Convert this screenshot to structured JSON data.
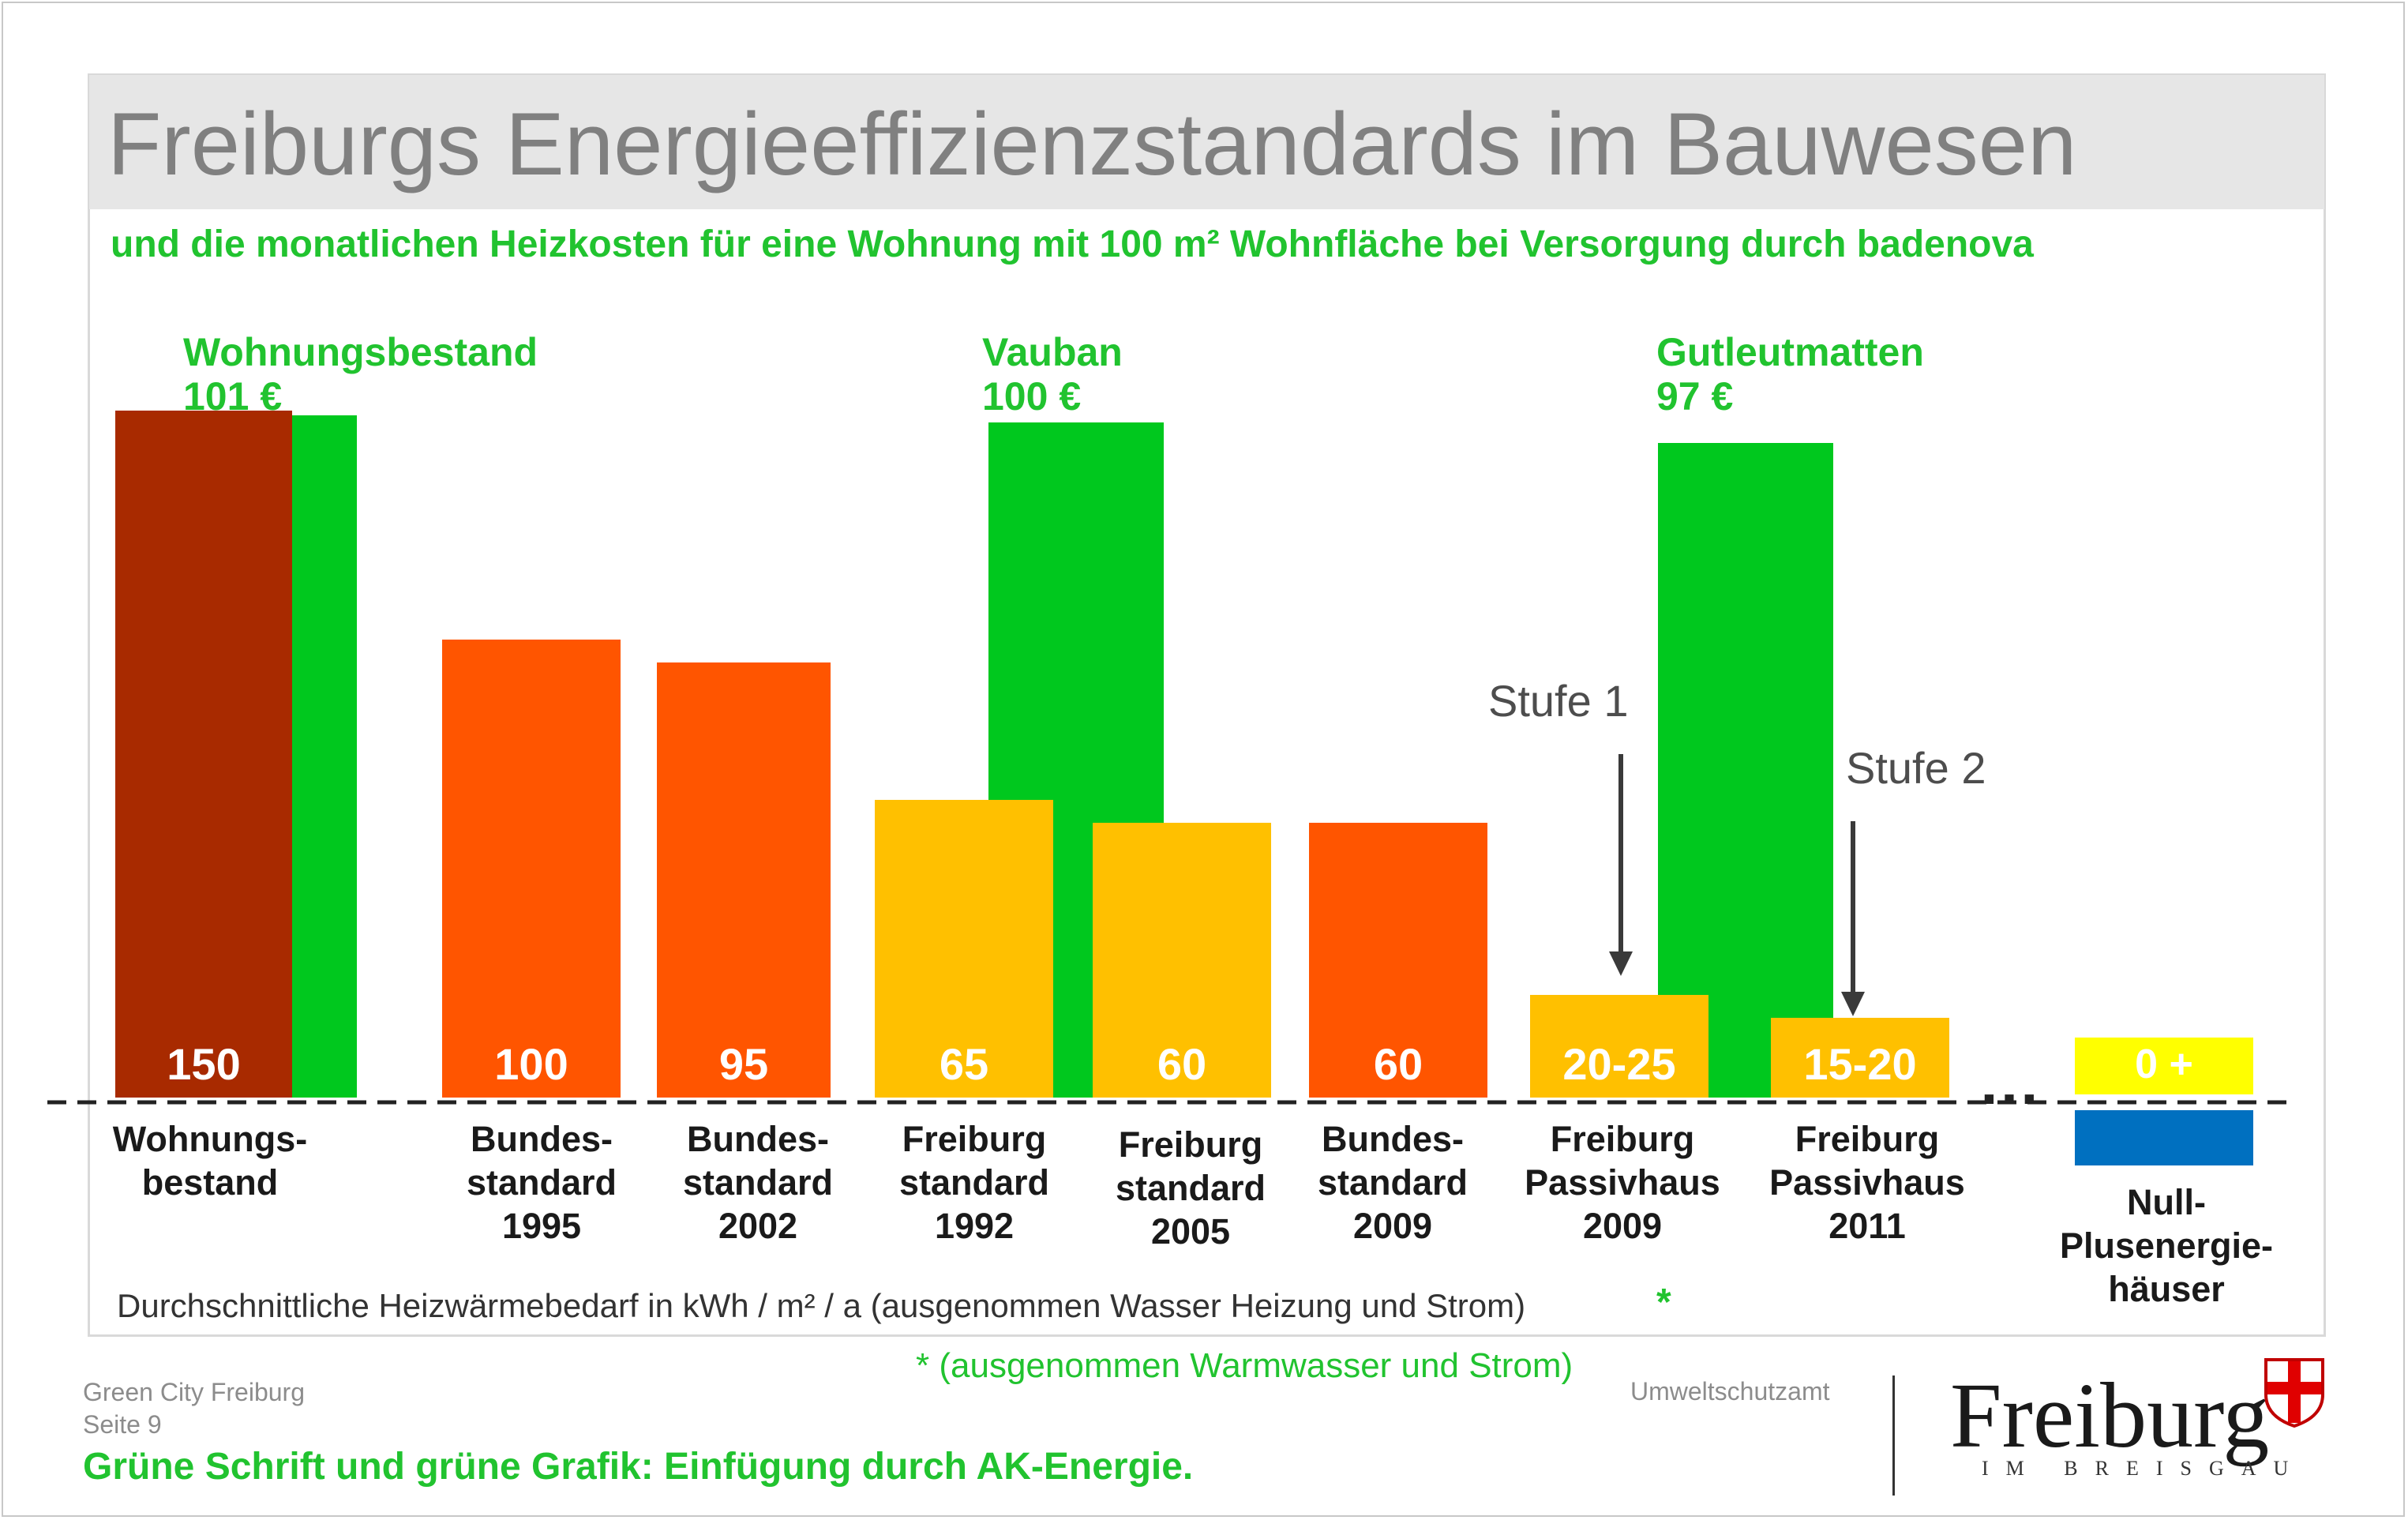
{
  "colors": {
    "green": "#00c81e",
    "dark_red": "#a82a00",
    "orange": "#ff5500",
    "amber": "#ffc000",
    "yellow": "#ffff00",
    "blue": "#0070c0",
    "title_gray": "#808080"
  },
  "header": {
    "title": "Freiburgs Energieeffizienzstandards im Bauwesen",
    "subtitle": "und die monatlichen Heizkosten für eine Wohnung mit 100 m² Wohnfläche bei Versorgung durch badenova"
  },
  "green_labels": [
    {
      "name": "Wohnungsbestand",
      "cost": "101 €"
    },
    {
      "name": "Vauban",
      "cost": "100 €"
    },
    {
      "name": "Gutleutmatten",
      "cost": "97 €"
    }
  ],
  "stufen": [
    "Stufe 1",
    "Stufe 2"
  ],
  "ellipsis": "…",
  "axis_note": "Durchschnittliche Heizwärmebedarf in kWh / m² / a (ausgenommen Wasser Heizung und Strom)",
  "star": "*",
  "footnote": "* (ausgenommen Warmwasser und Strom)",
  "footer": {
    "left_line1": "Green City Freiburg",
    "left_line2": "Seite 9",
    "right": "Umweltschutzamt",
    "note": "Grüne Schrift und grüne Grafik: Einfügung durch AK-Energie.",
    "logo": "Freiburg",
    "logo_sub": "IM BREISGAU"
  },
  "chart_data": {
    "type": "bar",
    "title": "Freiburgs Energieeffizienzstandards im Bauwesen",
    "categories": [
      "Wohnungs-bestand",
      "Bundes-standard 1995",
      "Bundes-standard 2002",
      "Freiburg standard 1992",
      "Freiburg standard 2005",
      "Bundes-standard 2009",
      "Freiburg Passivhaus 2009",
      "Freiburg Passivhaus 2011",
      "Null-Plusenergie-häuser"
    ],
    "category_lines": [
      [
        "Wohnungs-",
        "bestand"
      ],
      [
        "Bundes-",
        "standard",
        "1995"
      ],
      [
        "Bundes-",
        "standard",
        "2002"
      ],
      [
        "Freiburg",
        "standard",
        "1992"
      ],
      [
        "Freiburg",
        "standard",
        "2005"
      ],
      [
        "Bundes-",
        "standard",
        "2009"
      ],
      [
        "Freiburg",
        "Passivhaus",
        "2009"
      ],
      [
        "Freiburg",
        "Passivhaus",
        "2011"
      ],
      [
        "Null-",
        "Plusenergie-",
        "häuser"
      ]
    ],
    "series": [
      {
        "name": "Heizwärmebedarf in kWh / m² / a",
        "values": [
          150,
          100,
          95,
          65,
          60,
          60,
          22.5,
          17.5,
          0
        ],
        "labels": [
          "150",
          "100",
          "95",
          "65",
          "60",
          "60",
          "20-25",
          "15-20",
          "0 +"
        ],
        "colors": [
          "#a82a00",
          "#ff5500",
          "#ff5500",
          "#ffc000",
          "#ffc000",
          "#ff5500",
          "#ffc000",
          "#ffc000",
          "#ffff00"
        ]
      },
      {
        "name": "monatliche Heizkosten (€)",
        "points": [
          {
            "category": "Wohnungs-bestand",
            "value": 101
          },
          {
            "category": "Freiburg standard 1992",
            "value": 100
          },
          {
            "category": "Freiburg Passivhaus 2009",
            "value": 97
          }
        ]
      }
    ],
    "baseline": 0,
    "xlabel": "Durchschnittliche Heizwärmebedarf in kWh / m² / a (ausgenommen Wasser Heizung und Strom)"
  }
}
